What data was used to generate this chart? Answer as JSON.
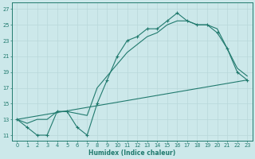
{
  "xlabel": "Humidex (Indice chaleur)",
  "bg_color": "#cce8ea",
  "grid_color": "#b8d8da",
  "line_color": "#217a6e",
  "xlim": [
    -0.5,
    23.5
  ],
  "ylim": [
    10.3,
    27.8
  ],
  "xticks": [
    0,
    1,
    2,
    3,
    4,
    5,
    6,
    7,
    8,
    9,
    10,
    11,
    12,
    13,
    14,
    15,
    16,
    17,
    18,
    19,
    20,
    21,
    22,
    23
  ],
  "yticks": [
    11,
    13,
    15,
    17,
    19,
    21,
    23,
    25,
    27
  ],
  "line1_x": [
    0,
    1,
    2,
    3,
    4,
    5,
    6,
    7,
    8,
    9,
    10,
    11,
    12,
    13,
    14,
    15,
    16,
    17,
    18,
    19,
    20,
    21,
    22,
    23
  ],
  "line1_y": [
    13,
    12,
    11,
    11,
    14,
    14,
    12,
    11,
    15,
    18,
    21,
    23,
    23.5,
    24.5,
    24.5,
    25.5,
    26.5,
    25.5,
    25,
    25,
    24,
    22,
    19,
    18
  ],
  "line2_x": [
    0,
    1,
    2,
    3,
    4,
    5,
    7,
    8,
    9,
    10,
    11,
    12,
    13,
    14,
    15,
    16,
    17,
    18,
    19,
    20,
    21,
    22,
    23
  ],
  "line2_y": [
    13,
    12.5,
    13,
    13,
    14,
    14,
    13.5,
    17,
    18.5,
    20,
    21.5,
    22.5,
    23.5,
    24,
    25,
    25.5,
    25.5,
    25,
    25,
    24.5,
    22,
    19.5,
    18.5
  ],
  "line3_x": [
    0,
    23
  ],
  "line3_y": [
    13,
    18
  ]
}
